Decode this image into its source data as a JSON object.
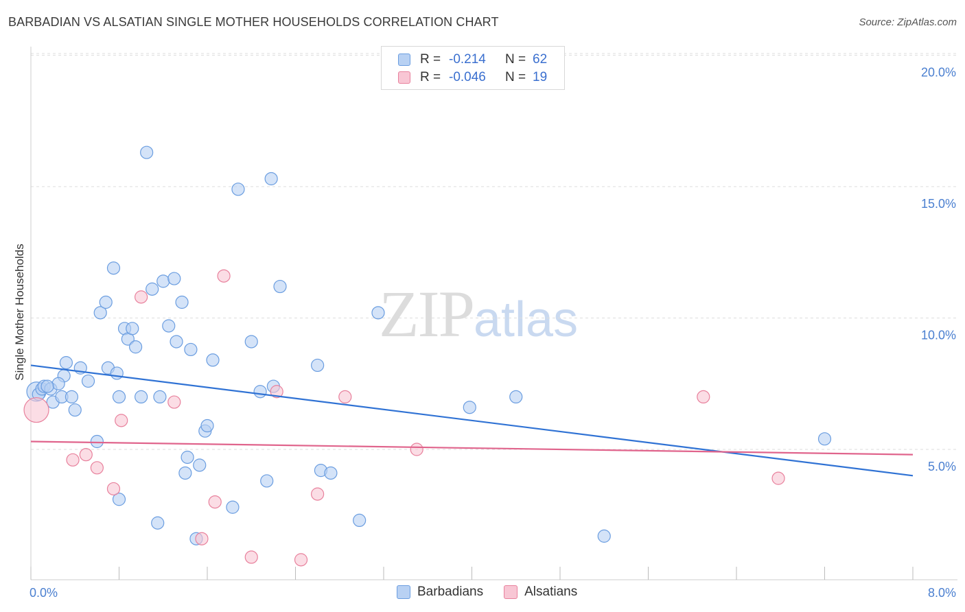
{
  "title": "BARBADIAN VS ALSATIAN SINGLE MOTHER HOUSEHOLDS CORRELATION CHART",
  "source": "Source: ZipAtlas.com",
  "watermark": {
    "zip": "ZIP",
    "atlas": "atlas"
  },
  "legend": {
    "rows": [
      {
        "r_label": "R =",
        "r_value": "-0.214",
        "n_label": "N =",
        "n_value": "62",
        "color": "#9dc0f0"
      },
      {
        "r_label": "R =",
        "r_value": "-0.046",
        "n_label": "N =",
        "n_value": "19",
        "color": "#f5b8c8"
      }
    ]
  },
  "bottom_legend": [
    {
      "label": "Barbadians",
      "color": "#9dc0f0"
    },
    {
      "label": "Alsatians",
      "color": "#f5b8c8"
    }
  ],
  "chart_data": {
    "type": "scatter",
    "title": "BARBADIAN VS ALSATIAN SINGLE MOTHER HOUSEHOLDS CORRELATION CHART",
    "xlabel": "",
    "ylabel": "Single Mother Households",
    "xlim": [
      0,
      8
    ],
    "ylim": [
      0,
      20
    ],
    "x_tick_labels": [
      "0.0%",
      "8.0%"
    ],
    "y_tick_values": [
      5,
      10,
      15,
      20
    ],
    "y_tick_labels": [
      "5.0%",
      "10.0%",
      "15.0%",
      "20.0%"
    ],
    "grid": "horizontal dashed",
    "legend_position": "top-center",
    "series": [
      {
        "name": "Barbadians",
        "color": "#6a9de0",
        "fill": "#b8d1f3",
        "trend": {
          "x": [
            0,
            8
          ],
          "y": [
            8.2,
            4.0
          ]
        },
        "points": [
          [
            0.05,
            7.2
          ],
          [
            0.07,
            7.1
          ],
          [
            0.1,
            7.3
          ],
          [
            0.12,
            7.4
          ],
          [
            0.18,
            7.3
          ],
          [
            0.2,
            6.8
          ],
          [
            0.28,
            7.0
          ],
          [
            0.3,
            7.8
          ],
          [
            0.32,
            8.3
          ],
          [
            0.37,
            7.0
          ],
          [
            0.4,
            6.5
          ],
          [
            0.45,
            8.1
          ],
          [
            0.52,
            7.6
          ],
          [
            0.6,
            5.3
          ],
          [
            0.63,
            10.2
          ],
          [
            0.68,
            10.6
          ],
          [
            0.7,
            8.1
          ],
          [
            0.75,
            11.9
          ],
          [
            0.78,
            7.9
          ],
          [
            0.8,
            7.0
          ],
          [
            0.8,
            3.1
          ],
          [
            0.85,
            9.6
          ],
          [
            0.88,
            9.2
          ],
          [
            0.92,
            9.6
          ],
          [
            0.95,
            8.9
          ],
          [
            1.0,
            7.0
          ],
          [
            1.05,
            16.3
          ],
          [
            1.1,
            11.1
          ],
          [
            1.17,
            7.0
          ],
          [
            1.15,
            2.2
          ],
          [
            1.2,
            11.4
          ],
          [
            1.25,
            9.7
          ],
          [
            1.3,
            11.5
          ],
          [
            1.32,
            9.1
          ],
          [
            1.37,
            10.6
          ],
          [
            1.4,
            4.1
          ],
          [
            1.42,
            4.7
          ],
          [
            1.45,
            8.8
          ],
          [
            1.5,
            1.6
          ],
          [
            1.53,
            4.4
          ],
          [
            1.58,
            5.7
          ],
          [
            1.6,
            5.9
          ],
          [
            1.65,
            8.4
          ],
          [
            1.83,
            2.8
          ],
          [
            1.88,
            14.9
          ],
          [
            2.0,
            9.1
          ],
          [
            2.08,
            7.2
          ],
          [
            2.14,
            3.8
          ],
          [
            2.18,
            15.3
          ],
          [
            2.2,
            7.4
          ],
          [
            2.26,
            11.2
          ],
          [
            2.63,
            4.2
          ],
          [
            2.72,
            4.1
          ],
          [
            2.6,
            8.2
          ],
          [
            2.98,
            2.3
          ],
          [
            3.15,
            10.2
          ],
          [
            3.98,
            6.6
          ],
          [
            4.4,
            7.0
          ],
          [
            5.2,
            1.7
          ],
          [
            7.2,
            5.4
          ],
          [
            0.25,
            7.5
          ],
          [
            0.15,
            7.4
          ]
        ]
      },
      {
        "name": "Alsatians",
        "color": "#e8809c",
        "fill": "#f8c6d4",
        "trend": {
          "x": [
            0,
            8
          ],
          "y": [
            5.3,
            4.8
          ]
        },
        "points": [
          [
            0.05,
            6.5
          ],
          [
            0.38,
            4.6
          ],
          [
            0.5,
            4.8
          ],
          [
            0.6,
            4.3
          ],
          [
            0.75,
            3.5
          ],
          [
            0.82,
            6.1
          ],
          [
            1.0,
            10.8
          ],
          [
            1.3,
            6.8
          ],
          [
            1.55,
            1.6
          ],
          [
            1.67,
            3.0
          ],
          [
            1.75,
            11.6
          ],
          [
            2.0,
            0.9
          ],
          [
            2.23,
            7.2
          ],
          [
            2.45,
            0.8
          ],
          [
            2.6,
            3.3
          ],
          [
            2.85,
            7.0
          ],
          [
            3.5,
            5.0
          ],
          [
            6.1,
            7.0
          ],
          [
            6.78,
            3.9
          ]
        ]
      }
    ]
  }
}
